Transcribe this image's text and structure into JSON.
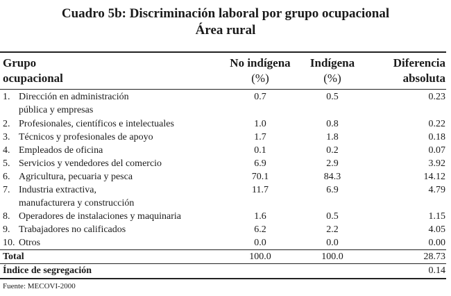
{
  "title": "Cuadro 5b: Discriminación laboral por grupo ocupacional",
  "subtitle": "Área rural",
  "headers": {
    "grupo_line1": "Grupo",
    "grupo_line2": "ocupacional",
    "noind_line1": "No indígena",
    "noind_line2": "(%)",
    "ind_line1": "Indígena",
    "ind_line2": "(%)",
    "dif_line1": "Diferencia",
    "dif_line2": "absoluta"
  },
  "rows": [
    {
      "num": "1.",
      "label1": "Dirección en administración",
      "label2": "pública y empresas",
      "no_indigena": "0.7",
      "indigena": "0.5",
      "diferencia": "0.23"
    },
    {
      "num": "2.",
      "label1": "Profesionales, científicos e intelectuales",
      "no_indigena": "1.0",
      "indigena": "0.8",
      "diferencia": "0.22"
    },
    {
      "num": "3.",
      "label1": "Técnicos y profesionales de apoyo",
      "no_indigena": "1.7",
      "indigena": "1.8",
      "diferencia": "0.18"
    },
    {
      "num": "4.",
      "label1": "Empleados de oficina",
      "no_indigena": "0.1",
      "indigena": "0.2",
      "diferencia": "0.07"
    },
    {
      "num": "5.",
      "label1": "Servicios y vendedores del comercio",
      "no_indigena": "6.9",
      "indigena": "2.9",
      "diferencia": "3.92"
    },
    {
      "num": "6.",
      "label1": "Agricultura, pecuaria y pesca",
      "no_indigena": "70.1",
      "indigena": "84.3",
      "diferencia": "14.12"
    },
    {
      "num": "7.",
      "label1": "Industria extractiva,",
      "label2": "manufacturera y construcción",
      "no_indigena": "11.7",
      "indigena": "6.9",
      "diferencia": "4.79"
    },
    {
      "num": "8.",
      "label1": "Operadores de instalaciones y maquinaria",
      "no_indigena": "1.6",
      "indigena": "0.5",
      "diferencia": "1.15"
    },
    {
      "num": "9.",
      "label1": "Trabajadores no calificados",
      "no_indigena": "6.2",
      "indigena": "2.2",
      "diferencia": "4.05"
    },
    {
      "num": "10.",
      "label1": "Otros",
      "no_indigena": "0.0",
      "indigena": "0.0",
      "diferencia": "0.00"
    }
  ],
  "total": {
    "label": "Total",
    "no_indigena": "100.0",
    "indigena": "100.0",
    "diferencia": "28.73"
  },
  "segregacion": {
    "label": "Índice de segregación",
    "diferencia": "0.14"
  },
  "source": "Fuente: MECOVI-2000"
}
